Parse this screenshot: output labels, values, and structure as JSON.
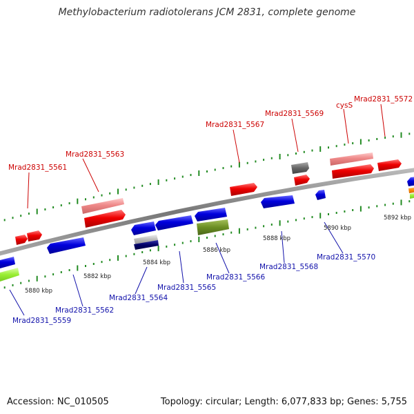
{
  "title": "Methylobacterium radiotolerans JCM 2831, complete genome",
  "accession": "Accession: NC_010505",
  "topology": "Topology: circular; Length: 6,077,833 bp; Genes: 5,755",
  "colors": {
    "red_gene": "#ee0000",
    "pink_gene": "#ee8888",
    "blue_gene": "#0000dd",
    "gray_gene": "#666666",
    "olive_gene": "#6b8e23",
    "lime_gene": "#99ee33",
    "orange_gene": "#ff8800",
    "backbone": "#888888",
    "tick_green": "#228b22",
    "label_red": "#cc0000",
    "label_blue": "#1010aa"
  },
  "ticks": [
    "5880 kbp",
    "5882 kbp",
    "5884 kbp",
    "5886 kbp",
    "5888 kbp",
    "5890 kbp",
    "5892 kbp"
  ],
  "labels_top": [
    "Mrad2831_5561",
    "Mrad2831_5563",
    "Mrad2831_5567",
    "Mrad2831_5569",
    "cysS",
    "Mrad2831_5572"
  ],
  "labels_bottom": [
    "Mrad2831_5559",
    "Mrad2831_5562",
    "Mrad2831_5564",
    "Mrad2831_5565",
    "Mrad2831_5566",
    "Mrad2831_5568",
    "Mrad2831_5570"
  ]
}
